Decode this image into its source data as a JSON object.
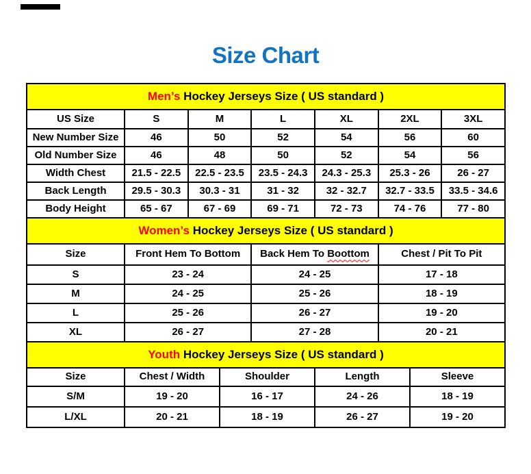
{
  "page": {
    "title": "Size Chart"
  },
  "colors": {
    "title": "#1273BE",
    "section_highlight": "#FF0000",
    "band_background": "#FFFF00",
    "border": "#000000",
    "squiggle": "#FF0000"
  },
  "spellcheck": {
    "table_index": 1,
    "column_index": 2,
    "word": "Boottom"
  },
  "chart_data": [
    {
      "type": "table",
      "title_highlight": "Men’s",
      "title_rest": " Hockey Jerseys Size ( US standard )",
      "columns": [
        "US Size",
        "S",
        "M",
        "L",
        "XL",
        "2XL",
        "3XL"
      ],
      "rows": [
        {
          "label": "New Number Size",
          "values": [
            "46",
            "50",
            "52",
            "54",
            "56",
            "60"
          ]
        },
        {
          "label": "Old Number Size",
          "values": [
            "46",
            "48",
            "50",
            "52",
            "54",
            "56"
          ]
        },
        {
          "label": "Width Chest",
          "values": [
            "21.5 - 22.5",
            "22.5 - 23.5",
            "23.5 - 24.3",
            "24.3 - 25.3",
            "25.3 - 26",
            "26 - 27"
          ]
        },
        {
          "label": "Back Length",
          "values": [
            "29.5 - 30.3",
            "30.3 - 31",
            "31 - 32",
            "32 - 32.7",
            "32.7 - 33.5",
            "33.5 - 34.6"
          ]
        },
        {
          "label": "Body Height",
          "values": [
            "65 - 67",
            "67 - 69",
            "69 - 71",
            "72 - 73",
            "74 - 76",
            "77 - 80"
          ]
        }
      ]
    },
    {
      "type": "table",
      "title_highlight": "Women’s",
      "title_rest": " Hockey Jerseys Size ( US standard )",
      "columns": [
        "Size",
        "Front Hem To Bottom",
        "Back Hem To Boottom",
        "Chest / Pit To Pit"
      ],
      "rows": [
        {
          "label": "S",
          "values": [
            "23 - 24",
            "24 - 25",
            "17 - 18"
          ]
        },
        {
          "label": "M",
          "values": [
            "24 - 25",
            "25 - 26",
            "18 - 19"
          ]
        },
        {
          "label": "L",
          "values": [
            "25 - 26",
            "26 - 27",
            "19 - 20"
          ]
        },
        {
          "label": "XL",
          "values": [
            "26 - 27",
            "27 - 28",
            "20 - 21"
          ]
        }
      ]
    },
    {
      "type": "table",
      "title_highlight": "Youth",
      "title_rest": " Hockey Jerseys Size ( US standard )",
      "columns": [
        "Size",
        "Chest / Width",
        "Shoulder",
        "Length",
        "Sleeve"
      ],
      "rows": [
        {
          "label": "S/M",
          "values": [
            "19 - 20",
            "16 - 17",
            "24 - 26",
            "18 - 19"
          ]
        },
        {
          "label": "L/XL",
          "values": [
            "20 - 21",
            "18 - 19",
            "26 - 27",
            "19 - 20"
          ]
        }
      ]
    }
  ]
}
